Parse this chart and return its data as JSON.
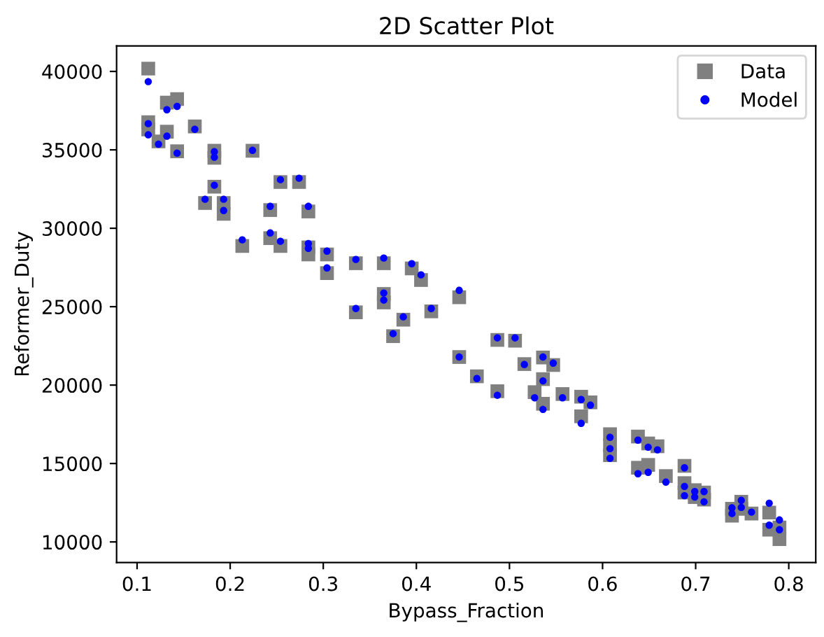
{
  "chart_data": {
    "type": "scatter",
    "title": "2D Scatter Plot",
    "xlabel": "Bypass_Fraction",
    "ylabel": "Reformer_Duty",
    "x": [
      0.112,
      0.132,
      0.143,
      0.112,
      0.112,
      0.132,
      0.123,
      0.143,
      0.162,
      0.183,
      0.183,
      0.224,
      0.183,
      0.173,
      0.193,
      0.193,
      0.254,
      0.274,
      0.243,
      0.284,
      0.213,
      0.243,
      0.254,
      0.284,
      0.284,
      0.304,
      0.304,
      0.335,
      0.365,
      0.395,
      0.405,
      0.365,
      0.365,
      0.335,
      0.386,
      0.416,
      0.446,
      0.375,
      0.487,
      0.506,
      0.446,
      0.516,
      0.465,
      0.487,
      0.536,
      0.547,
      0.536,
      0.527,
      0.536,
      0.557,
      0.577,
      0.587,
      0.577,
      0.608,
      0.608,
      0.608,
      0.638,
      0.649,
      0.659,
      0.638,
      0.649,
      0.668,
      0.688,
      0.688,
      0.688,
      0.699,
      0.699,
      0.709,
      0.709,
      0.739,
      0.739,
      0.749,
      0.749,
      0.76,
      0.779,
      0.779,
      0.79,
      0.79
    ],
    "series": [
      {
        "name": "Data",
        "color": "#808080",
        "marker": "square",
        "values": [
          40180,
          38010,
          38240,
          36760,
          36300,
          36160,
          35540,
          34910,
          36490,
          34940,
          34490,
          34940,
          32650,
          31610,
          31610,
          30920,
          32950,
          32950,
          31160,
          31070,
          28870,
          29370,
          28870,
          28780,
          28330,
          28330,
          27140,
          27770,
          27770,
          27440,
          26700,
          25810,
          25270,
          24640,
          24170,
          24700,
          25600,
          23120,
          22880,
          22830,
          21790,
          21340,
          20560,
          19610,
          21760,
          21280,
          20380,
          19550,
          18810,
          19430,
          19260,
          18900,
          18010,
          16870,
          16160,
          15530,
          16720,
          16280,
          16100,
          14730,
          14910,
          14200,
          14850,
          13750,
          13150,
          13300,
          12860,
          13150,
          12700,
          12110,
          11670,
          12560,
          12110,
          11810,
          11870,
          10780,
          10920,
          10180
        ]
      },
      {
        "name": "Model",
        "color": "#0000ff",
        "marker": "circle",
        "values": [
          39350,
          37560,
          37770,
          36670,
          35960,
          35870,
          35360,
          34790,
          36310,
          34880,
          34530,
          34970,
          32740,
          31850,
          31850,
          31130,
          33100,
          33190,
          31400,
          31400,
          29260,
          29700,
          29170,
          29020,
          28720,
          28540,
          27470,
          28010,
          28100,
          27740,
          27030,
          25870,
          25420,
          24880,
          24350,
          24880,
          26040,
          23280,
          23010,
          23010,
          21790,
          21310,
          20420,
          19350,
          21790,
          21400,
          20270,
          19190,
          18450,
          19190,
          19080,
          18720,
          17560,
          16670,
          15950,
          15330,
          16490,
          16040,
          15870,
          14350,
          14440,
          13810,
          14730,
          13540,
          12950,
          13210,
          12860,
          13210,
          12560,
          12170,
          11810,
          12650,
          12200,
          11900,
          12470,
          11070,
          11400,
          10780
        ]
      }
    ],
    "xlim": [
      0.078,
      0.829
    ],
    "ylim": [
      8690,
      41630
    ],
    "xticks": [
      0.1,
      0.2,
      0.3,
      0.4,
      0.5,
      0.6,
      0.7,
      0.8
    ],
    "yticks": [
      10000,
      15000,
      20000,
      25000,
      30000,
      35000,
      40000
    ],
    "legend": "top right"
  }
}
